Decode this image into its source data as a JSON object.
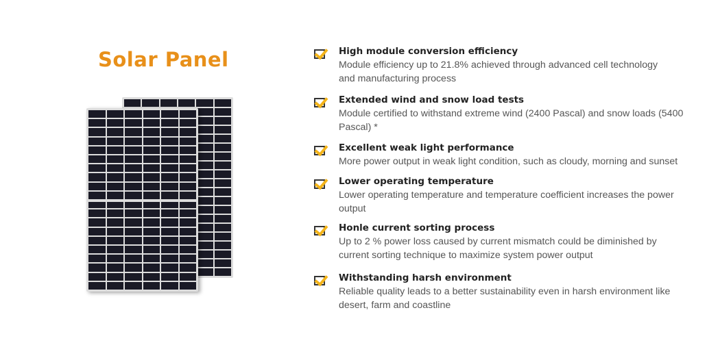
{
  "title": "Solar Panel",
  "features": [
    {
      "heading": "High module conversion efficiency",
      "line1": "Module efficiency up to 21.8% achieved through  advanced cell technology",
      "line2": "and manufacturing process"
    },
    {
      "heading": "Extended wind and snow load tests",
      "line1": "Module certified to withstand extreme wind (2400 Pascal) and snow loads (5400",
      "line2": "Pascal) *"
    },
    {
      "heading": "Excellent weak light performance",
      "line1": "More power output in weak light condition, such as  cloudy, morning and sunset",
      "line2": ""
    },
    {
      "heading": "Lower operating temperature",
      "line1": "Lower operating temperature and temperature coefficient increases the power",
      "line2": "output"
    },
    {
      "heading": "Honle current sorting process",
      "line1": "Up to 2 % power loss caused by current mismatch could be diminished by",
      "line2": "current sorting technique  to maximize system power output"
    },
    {
      "heading": "Withstanding harsh environment",
      "line1": "Reliable quality leads to a better sustainability even in harsh environment like",
      "line2": "desert, farm and coastline"
    }
  ],
  "colors": {
    "title": "#e8901a",
    "check": "#f4b41a"
  }
}
